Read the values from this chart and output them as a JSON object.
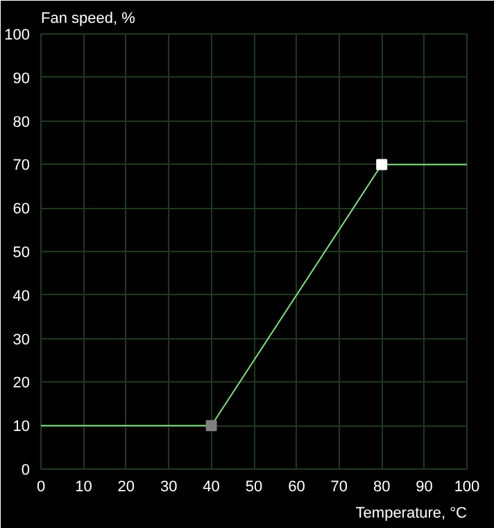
{
  "chart_data": {
    "type": "line",
    "xlabel": "Temperature, °C",
    "ylabel": "Fan speed, %",
    "xlim": [
      0,
      100
    ],
    "ylim": [
      0,
      100
    ],
    "xticks": [
      0,
      10,
      20,
      30,
      40,
      50,
      60,
      70,
      80,
      90,
      100
    ],
    "yticks": [
      0,
      10,
      20,
      30,
      40,
      50,
      60,
      70,
      80,
      90,
      100
    ],
    "grid": true,
    "series": [
      {
        "color": "#7fe07f",
        "x": [
          0,
          40,
          80,
          100
        ],
        "values": [
          10,
          10,
          70,
          70
        ]
      },
      {
        "type": "scatter",
        "marker": "square",
        "colors": [
          "#808080",
          "#ffffff"
        ],
        "x": [
          40,
          80
        ],
        "values": [
          10,
          70
        ]
      }
    ]
  }
}
